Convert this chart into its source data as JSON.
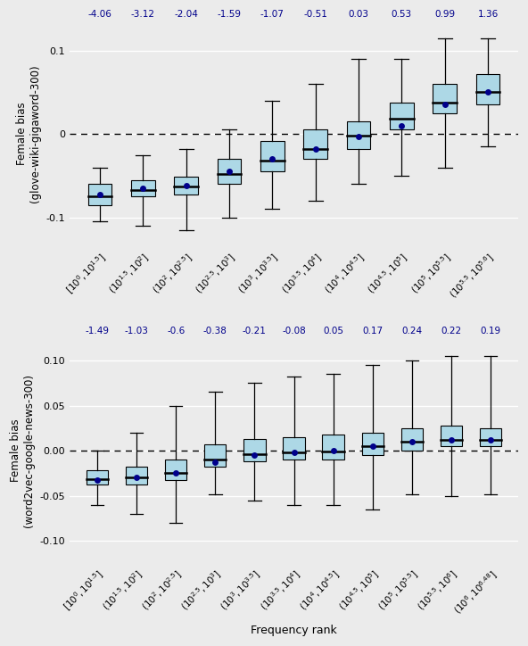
{
  "plot1": {
    "ylabel": "Female bias\n(glove-wiki-gigaword-300)",
    "ylim": [
      -0.135,
      0.135
    ],
    "yticks": [
      -0.1,
      0.0,
      0.1
    ],
    "ytick_labels": [
      "-0.1",
      "0",
      "0.1"
    ],
    "top_labels": [
      "-4.06",
      "-3.12",
      "-2.04",
      "-1.59",
      "-1.07",
      "-0.51",
      "0.03",
      "0.53",
      "0.99",
      "1.36"
    ],
    "xticklabels": [
      "$[10^0, 10^{1.5}]$",
      "$(10^{1.5}, 10^2]$",
      "$(10^2, 10^{2.5}]$",
      "$(10^{2.5}, 10^3]$",
      "$(10^3, 10^{3.5}]$",
      "$(10^{3.5}, 10^4]$",
      "$(10^4, 10^{4.5}]$",
      "$(10^{4.5}, 10^5]$",
      "$(10^5, 10^{5.5}]$",
      "$(10^{5.5}, 10^{5.6}]$"
    ],
    "boxes": [
      {
        "q1": -0.085,
        "median": -0.075,
        "q3": -0.06,
        "mean": -0.073,
        "whislo": -0.105,
        "whishi": -0.04
      },
      {
        "q1": -0.075,
        "median": -0.067,
        "q3": -0.055,
        "mean": -0.065,
        "whislo": -0.11,
        "whishi": -0.025
      },
      {
        "q1": -0.072,
        "median": -0.063,
        "q3": -0.051,
        "mean": -0.062,
        "whislo": -0.115,
        "whishi": -0.018
      },
      {
        "q1": -0.06,
        "median": -0.048,
        "q3": -0.03,
        "mean": -0.045,
        "whislo": -0.1,
        "whishi": 0.005
      },
      {
        "q1": -0.045,
        "median": -0.032,
        "q3": -0.008,
        "mean": -0.03,
        "whislo": -0.09,
        "whishi": 0.04
      },
      {
        "q1": -0.03,
        "median": -0.018,
        "q3": 0.005,
        "mean": -0.018,
        "whislo": -0.08,
        "whishi": 0.06
      },
      {
        "q1": -0.018,
        "median": -0.002,
        "q3": 0.015,
        "mean": -0.003,
        "whislo": -0.06,
        "whishi": 0.09
      },
      {
        "q1": 0.005,
        "median": 0.018,
        "q3": 0.038,
        "mean": 0.01,
        "whislo": -0.05,
        "whishi": 0.09
      },
      {
        "q1": 0.025,
        "median": 0.038,
        "q3": 0.06,
        "mean": 0.035,
        "whislo": -0.04,
        "whishi": 0.115
      },
      {
        "q1": 0.035,
        "median": 0.05,
        "q3": 0.072,
        "mean": 0.05,
        "whislo": -0.015,
        "whishi": 0.115
      }
    ]
  },
  "plot2": {
    "ylabel": "Female bias\n(word2vec-google-news-300)",
    "ylim": [
      -0.125,
      0.125
    ],
    "yticks": [
      -0.1,
      -0.05,
      0.0,
      0.05,
      0.1
    ],
    "ytick_labels": [
      "-0.10",
      "-0.05",
      "0.00",
      "0.05",
      "0.10"
    ],
    "top_labels": [
      "-1.49",
      "-1.03",
      "-0.6",
      "-0.38",
      "-0.21",
      "-0.08",
      "0.05",
      "0.17",
      "0.24",
      "0.22",
      "0.19"
    ],
    "xticklabels": [
      "$[10^0, 10^{1.5}]$",
      "$(10^{1.5}, 10^2]$",
      "$(10^2, 10^{2.5}]$",
      "$(10^{2.5}, 10^3]$",
      "$(10^3, 10^{3.5}]$",
      "$(10^{3.5}, 10^4]$",
      "$(10^4, 10^{4.5}]$",
      "$(10^{4.5}, 10^5]$",
      "$(10^5, 10^{5.5}]$",
      "$(10^{5.5}, 10^6]$",
      "$(10^6, 10^{6.48}]$"
    ],
    "boxes": [
      {
        "q1": -0.038,
        "median": -0.032,
        "q3": -0.022,
        "mean": -0.033,
        "whislo": -0.06,
        "whishi": 0.0
      },
      {
        "q1": -0.038,
        "median": -0.03,
        "q3": -0.018,
        "mean": -0.03,
        "whislo": -0.07,
        "whishi": 0.02
      },
      {
        "q1": -0.033,
        "median": -0.025,
        "q3": -0.01,
        "mean": -0.025,
        "whislo": -0.08,
        "whishi": 0.05
      },
      {
        "q1": -0.018,
        "median": -0.01,
        "q3": 0.007,
        "mean": -0.013,
        "whislo": -0.048,
        "whishi": 0.065
      },
      {
        "q1": -0.012,
        "median": -0.004,
        "q3": 0.013,
        "mean": -0.005,
        "whislo": -0.055,
        "whishi": 0.075
      },
      {
        "q1": -0.01,
        "median": -0.002,
        "q3": 0.015,
        "mean": -0.002,
        "whislo": -0.06,
        "whishi": 0.082
      },
      {
        "q1": -0.01,
        "median": -0.001,
        "q3": 0.018,
        "mean": 0.0,
        "whislo": -0.06,
        "whishi": 0.085
      },
      {
        "q1": -0.005,
        "median": 0.005,
        "q3": 0.02,
        "mean": 0.005,
        "whislo": -0.065,
        "whishi": 0.095
      },
      {
        "q1": 0.0,
        "median": 0.01,
        "q3": 0.025,
        "mean": 0.01,
        "whislo": -0.048,
        "whishi": 0.1
      },
      {
        "q1": 0.005,
        "median": 0.012,
        "q3": 0.028,
        "mean": 0.012,
        "whislo": -0.05,
        "whishi": 0.105
      },
      {
        "q1": 0.005,
        "median": 0.012,
        "q3": 0.025,
        "mean": 0.012,
        "whislo": -0.048,
        "whishi": 0.105
      }
    ]
  },
  "box_facecolor": "#add8e6",
  "median_color": "#000000",
  "mean_color": "#00008b",
  "whisker_color": "#000000",
  "top_label_color": "#00008b",
  "xlabel": "Frequency rank",
  "bg_color": "#ebebeb",
  "grid_color": "#ffffff"
}
